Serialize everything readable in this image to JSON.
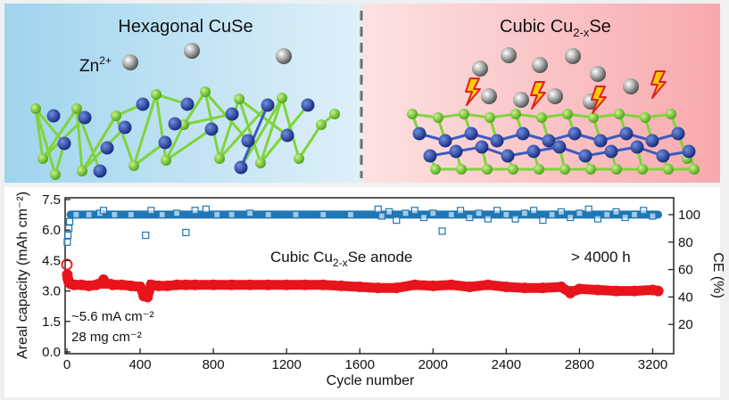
{
  "top_panel": {
    "left_title": "Hexagonal CuSe",
    "right_title_main": "Cubic Cu",
    "right_title_sub": "2-x",
    "right_title_tail": "Se",
    "zn_label": "Zn",
    "zn_charge": "2+"
  },
  "colors": {
    "ce_series": "#1f77b4",
    "capacity_series": "#e8141c",
    "cu_atom": "#1a3fa0",
    "se_atom": "#66cc22",
    "zn_atom": "#8a8a8a"
  },
  "chart_data": {
    "type": "scatter",
    "title": "",
    "xlabel": "Cycle number",
    "ylabel_left": "Areal capacity (mAh cm⁻²)",
    "ylabel_right": "CE (%)",
    "xlim": [
      0,
      3300
    ],
    "ylim_left": [
      0,
      7.5
    ],
    "ylim_right": [
      0,
      111
    ],
    "x_ticks": [
      0,
      400,
      800,
      1200,
      1600,
      2000,
      2400,
      2800,
      3200
    ],
    "y_left_ticks": [
      "0.0",
      "1.5",
      "3.0",
      "4.5",
      "6.0",
      "7.5"
    ],
    "y_right_ticks": [
      "20",
      "40",
      "60",
      "80",
      "100"
    ],
    "annotation_main": "Cubic Cu",
    "annotation_main_sub": "2-x",
    "annotation_main_tail": "Se anode",
    "annotation_time": "> 4000 h",
    "conditions_line1": "~5.6 mA cm⁻²",
    "conditions_line2": "28 mg cm⁻²",
    "series": [
      {
        "name": "CE (%)",
        "axis": "right",
        "marker": "open-square",
        "cycles": [
          2,
          5,
          10,
          15,
          50,
          120,
          180,
          200,
          260,
          350,
          430,
          460,
          520,
          600,
          650,
          700,
          760,
          820,
          900,
          1000,
          1100,
          1250,
          1400,
          1550,
          1700,
          1720,
          1760,
          1800,
          1850,
          1900,
          1950,
          2000,
          2050,
          2100,
          2150,
          2200,
          2250,
          2300,
          2350,
          2400,
          2450,
          2500,
          2550,
          2600,
          2650,
          2700,
          2750,
          2800,
          2850,
          2900,
          2950,
          3000,
          3050,
          3100,
          3150,
          3200
        ],
        "values": [
          80,
          85,
          90,
          95,
          100,
          100,
          101,
          103,
          100,
          100,
          85,
          103,
          100,
          101,
          87,
          103,
          104,
          100,
          100,
          101,
          100,
          100,
          100,
          100,
          104,
          99,
          102,
          96,
          101,
          103,
          98,
          101,
          88,
          100,
          103,
          98,
          101,
          97,
          103,
          100,
          97,
          101,
          103,
          96,
          100,
          102,
          98,
          101,
          104,
          97,
          100,
          102,
          98,
          100,
          103,
          99
        ]
      },
      {
        "name": "Areal capacity",
        "axis": "left",
        "marker": "filled-circle",
        "cycles": [
          0,
          2,
          5,
          10,
          20,
          40,
          80,
          120,
          160,
          200,
          250,
          300,
          350,
          400,
          420,
          440,
          460,
          500,
          550,
          600,
          650,
          700,
          800,
          900,
          1000,
          1100,
          1200,
          1300,
          1400,
          1500,
          1600,
          1700,
          1800,
          1900,
          2000,
          2100,
          2200,
          2300,
          2400,
          2500,
          2600,
          2700,
          2750,
          2800,
          2900,
          3000,
          3100,
          3200,
          3230
        ],
        "values": [
          4.3,
          3.8,
          3.6,
          3.45,
          3.35,
          3.3,
          3.3,
          3.25,
          3.3,
          3.55,
          3.3,
          3.3,
          3.25,
          3.2,
          2.75,
          2.7,
          3.3,
          3.25,
          3.25,
          3.3,
          3.3,
          3.3,
          3.3,
          3.3,
          3.3,
          3.3,
          3.3,
          3.3,
          3.3,
          3.25,
          3.2,
          3.15,
          3.15,
          3.3,
          3.25,
          3.3,
          3.2,
          3.3,
          3.2,
          3.15,
          3.15,
          3.2,
          2.9,
          3.1,
          3.05,
          3.0,
          3.0,
          3.05,
          3.0
        ]
      }
    ]
  }
}
